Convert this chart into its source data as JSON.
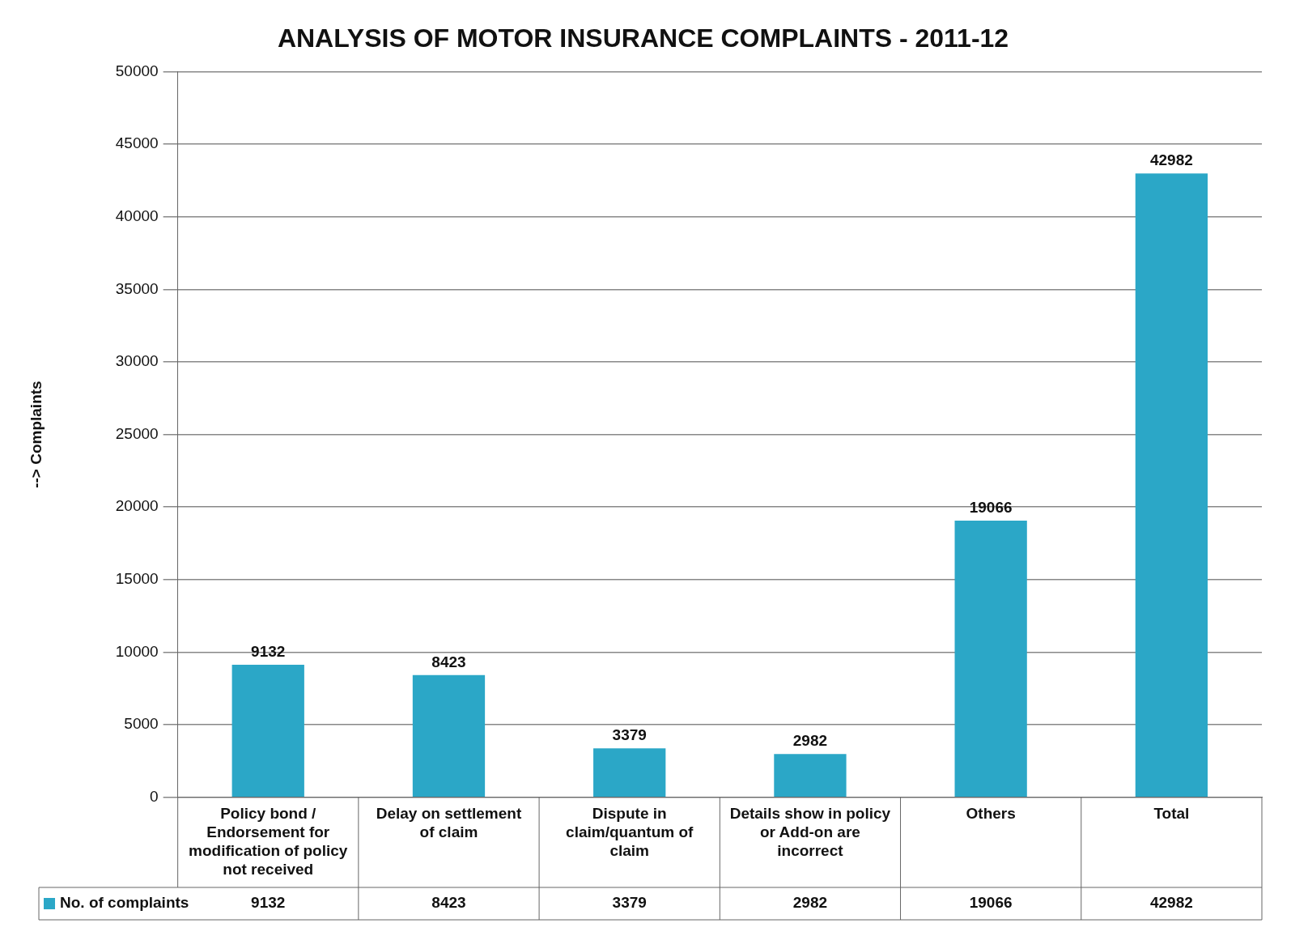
{
  "chart_data": {
    "type": "bar",
    "title": "ANALYSIS OF MOTOR INSURANCE COMPLAINTS - 2011-12",
    "ylabel": "--> Complaints",
    "categories": [
      "Policy bond / Endorsement for modification of policy not received",
      "Delay on settlement of claim",
      "Dispute in claim/quantum of claim",
      "Details show in policy or Add-on are incorrect",
      "Others",
      "Total"
    ],
    "series": [
      {
        "name": "No. of complaints",
        "color": "#2ba7c7",
        "values": [
          9132,
          8423,
          3379,
          2982,
          19066,
          42982
        ]
      }
    ],
    "annotations": [
      "9132",
      "8423",
      "3379",
      "2982",
      "19066",
      "42982"
    ],
    "ylim": [
      0,
      50000
    ],
    "yticks": [
      0,
      5000,
      10000,
      15000,
      20000,
      25000,
      30000,
      35000,
      40000,
      45000,
      50000
    ],
    "grid": "y",
    "legend": "bottom",
    "data_labels": true
  }
}
